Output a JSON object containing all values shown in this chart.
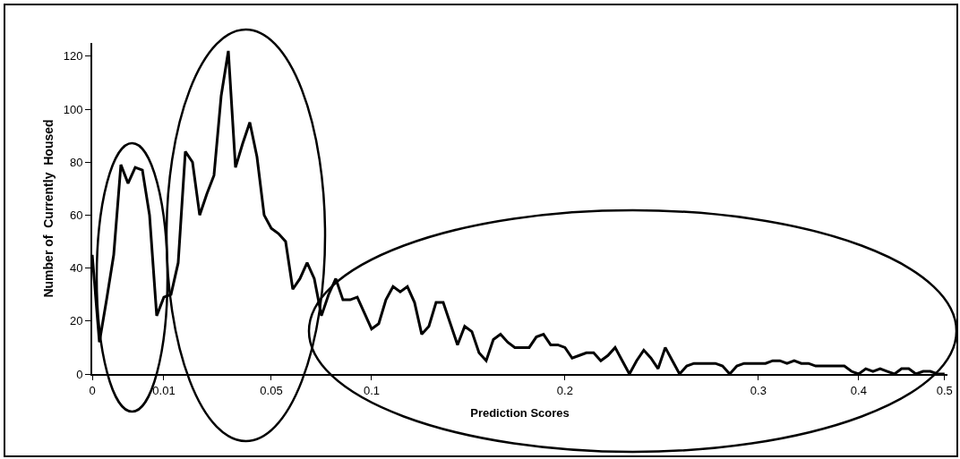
{
  "chart_data": {
    "type": "line",
    "xlabel": "Prediction Scores",
    "ylabel": "Number of  Currently  Housed",
    "categories": [
      "0",
      null,
      null,
      null,
      null,
      null,
      null,
      null,
      null,
      null,
      "0.01",
      null,
      null,
      null,
      null,
      null,
      null,
      null,
      null,
      null,
      null,
      null,
      null,
      null,
      null,
      "0.05",
      null,
      null,
      null,
      null,
      null,
      null,
      null,
      null,
      null,
      null,
      null,
      null,
      null,
      "0.1",
      null,
      null,
      null,
      null,
      null,
      null,
      null,
      null,
      null,
      null,
      null,
      null,
      null,
      null,
      null,
      null,
      null,
      null,
      null,
      null,
      null,
      null,
      null,
      null,
      null,
      null,
      "0.2",
      null,
      null,
      null,
      null,
      null,
      null,
      null,
      null,
      null,
      null,
      null,
      null,
      null,
      null,
      null,
      null,
      null,
      null,
      null,
      null,
      null,
      null,
      null,
      null,
      null,
      null,
      "0.3",
      null,
      null,
      null,
      null,
      null,
      null,
      null,
      null,
      null,
      null,
      null,
      null,
      null,
      "0.4",
      null,
      null,
      null,
      null,
      null,
      null,
      null,
      null,
      null,
      null,
      null,
      "0.5"
    ],
    "values": [
      45,
      12,
      28,
      45,
      79,
      72,
      78,
      77,
      60,
      22,
      29,
      30,
      42,
      84,
      80,
      60,
      68,
      75,
      105,
      122,
      78,
      87,
      95,
      82,
      60,
      55,
      53,
      50,
      32,
      36,
      42,
      36,
      22,
      30,
      36,
      28,
      28,
      29,
      23,
      17,
      19,
      28,
      33,
      31,
      33,
      27,
      15,
      18,
      27,
      27,
      19,
      11,
      18,
      16,
      8,
      5,
      13,
      15,
      12,
      10,
      10,
      10,
      14,
      15,
      11,
      11,
      10,
      6,
      7,
      8,
      8,
      5,
      7,
      10,
      5,
      0,
      5,
      9,
      6,
      2,
      10,
      5,
      0,
      3,
      4,
      4,
      4,
      4,
      3,
      0,
      3,
      4,
      4,
      4,
      4,
      5,
      5,
      4,
      5,
      4,
      4,
      3,
      3,
      3,
      3,
      3,
      1,
      0,
      2,
      1,
      2,
      1,
      0,
      2,
      2,
      0,
      1,
      1,
      0,
      0
    ],
    "color": "#000000",
    "ylim": [
      0,
      125
    ],
    "yticks": [
      0,
      20,
      40,
      60,
      80,
      100,
      120
    ]
  }
}
